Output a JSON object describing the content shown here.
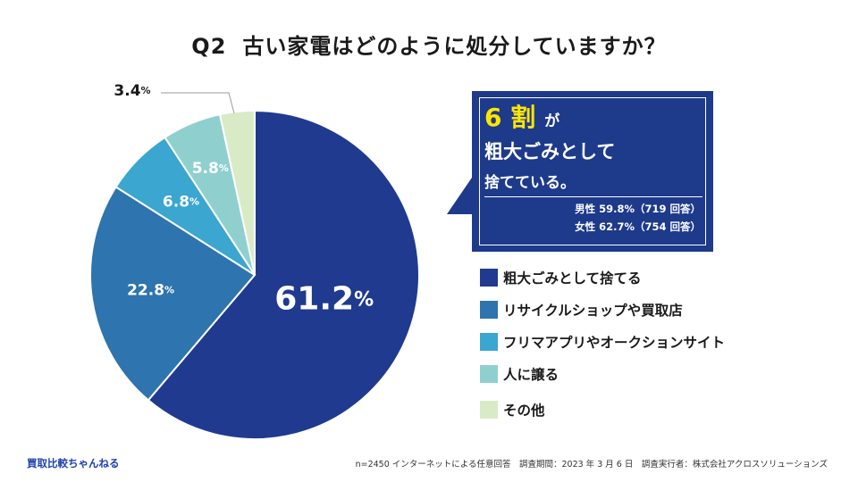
{
  "title": {
    "q": "Q2",
    "text": "古い家電はどのように処分していますか？"
  },
  "chart_data": {
    "type": "pie",
    "title": "Q2 古い家電はどのように処分していますか？",
    "start": "12 o'clock, clockwise",
    "slices": [
      {
        "label": "粗大ごみとして捨てる",
        "value": 61.2,
        "display_num": "61.2",
        "unit": "%",
        "color": "#1f3a8f"
      },
      {
        "label": "リサイクルショップや買取店",
        "value": 22.8,
        "display_num": "22.8",
        "unit": "%",
        "color": "#2e74ae"
      },
      {
        "label": "フリマアプリやオークションサイト",
        "value": 6.8,
        "display_num": "6.8",
        "unit": "%",
        "color": "#3ba6cf"
      },
      {
        "label": "人に譲る",
        "value": 5.8,
        "display_num": "5.8",
        "unit": "%",
        "color": "#8fd0cf"
      },
      {
        "label": "その他",
        "value": 3.4,
        "display_num": "3.4",
        "unit": "%",
        "color": "#d9ebc6"
      }
    ]
  },
  "callout": {
    "big": "6 割",
    "line1_rest": "が",
    "line2": "粗大ごみとして",
    "line3": "捨てている。",
    "male": "男性 59.8%（719 回答）",
    "female": "女性 62.7%（754 回答）"
  },
  "footer": {
    "brand": "買取比較ちゃんねる",
    "note": "n=2450 インターネットによる任意回答　調査期間：2023 年 3 月 6 日　調査実行者：株式会社アクロスソリューションズ"
  }
}
